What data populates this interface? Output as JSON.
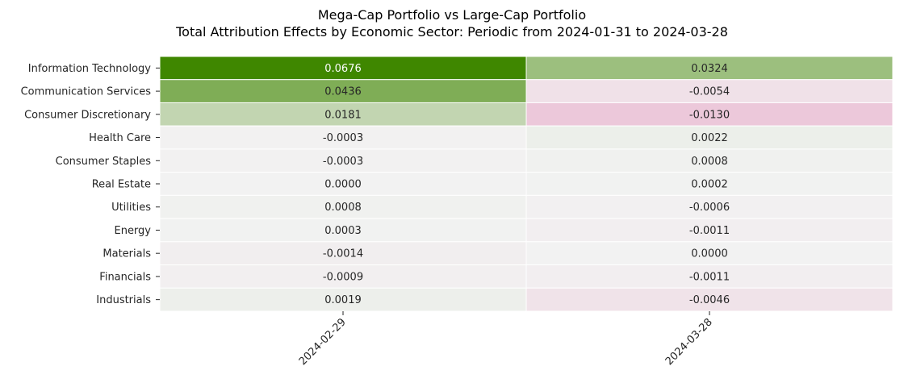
{
  "chart_data": {
    "type": "heatmap",
    "title": "Mega-Cap Portfolio vs Large-Cap Portfolio",
    "subtitle": "Total Attribution Effects by Economic Sector: Periodic from 2024-01-31 to 2024-03-28",
    "xlabel": "",
    "ylabel": "",
    "columns": [
      "2024-02-29",
      "2024-03-28"
    ],
    "rows": [
      "Information Technology",
      "Communication Services",
      "Consumer Discretionary",
      "Health Care",
      "Consumer Staples",
      "Real Estate",
      "Utilities",
      "Energy",
      "Materials",
      "Financials",
      "Industrials"
    ],
    "values": [
      [
        0.0676,
        0.0324
      ],
      [
        0.0436,
        -0.0054
      ],
      [
        0.0181,
        -0.013
      ],
      [
        -0.0003,
        0.0022
      ],
      [
        -0.0003,
        0.0008
      ],
      [
        0.0,
        0.0002
      ],
      [
        0.0008,
        -0.0006
      ],
      [
        0.0003,
        -0.0011
      ],
      [
        -0.0014,
        0.0
      ],
      [
        -0.0009,
        -0.0011
      ],
      [
        0.0019,
        -0.0046
      ]
    ],
    "labels": [
      [
        "0.0676",
        "0.0324"
      ],
      [
        "0.0436",
        "-0.0054"
      ],
      [
        "0.0181",
        "-0.0130"
      ],
      [
        "-0.0003",
        "0.0022"
      ],
      [
        "-0.0003",
        "0.0008"
      ],
      [
        "0.0000",
        "0.0002"
      ],
      [
        "0.0008",
        "-0.0006"
      ],
      [
        "0.0003",
        "-0.0011"
      ],
      [
        "-0.0014",
        "0.0000"
      ],
      [
        "-0.0009",
        "-0.0011"
      ],
      [
        "0.0019",
        "-0.0046"
      ]
    ],
    "color_scale": {
      "type": "diverging",
      "center": 0,
      "vmin": -0.0676,
      "vmax": 0.0676,
      "negative_color": "#d41a73",
      "center_color": "#f2f2f2",
      "positive_color": "#3f8700"
    },
    "colorbar": false,
    "grid_lines_color": "#ffffff"
  }
}
